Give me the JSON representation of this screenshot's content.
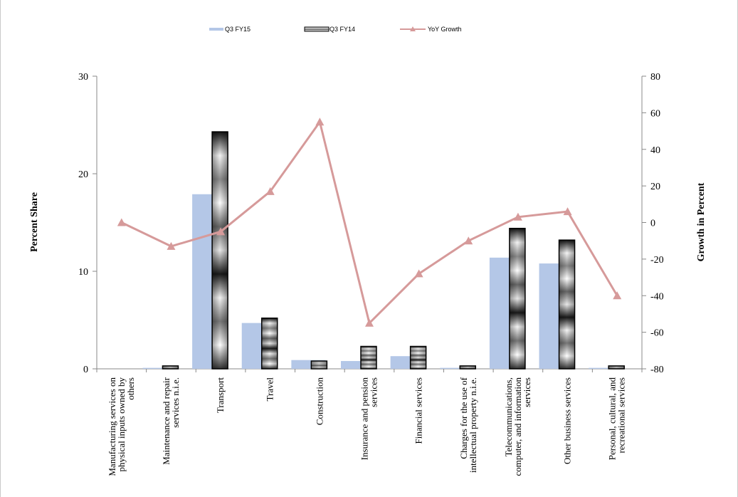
{
  "chart_data": {
    "type": "bar",
    "categories": [
      "Manufacturing  services on physical inputs owned by others",
      "Maintenance  and repair services  n.i.e.",
      "Transport",
      "Travel",
      "Construction",
      "Insurance and pension services",
      "Financial services",
      "Charges for the use of intellectual property n.i.e.",
      "Telecommunications, computer, and information services",
      "Other business services",
      "Personal, cultural, and recreational services"
    ],
    "category_lines": [
      [
        "Manufacturing  services on",
        "physical inputs owned by",
        "others"
      ],
      [
        "Maintenance  and repair",
        "services  n.i.e."
      ],
      [
        "Transport"
      ],
      [
        "Travel"
      ],
      [
        "Construction"
      ],
      [
        "Insurance and pension",
        "services"
      ],
      [
        "Financial services"
      ],
      [
        "Charges for the use of",
        "intellectual property n.i.e."
      ],
      [
        "Telecommunications,",
        "computer, and information",
        "services"
      ],
      [
        "Other business services"
      ],
      [
        "Personal, cultural, and",
        "recreational services"
      ]
    ],
    "series": [
      {
        "name": "Q3 FY15",
        "kind": "bar",
        "axis": "left",
        "color": "#b4c7e7",
        "values": [
          0,
          0.1,
          17.9,
          4.7,
          0.9,
          0.8,
          1.3,
          0.1,
          11.4,
          10.8,
          0.1
        ]
      },
      {
        "name": "Q3 FY14",
        "kind": "bar",
        "axis": "left",
        "color": "#808080",
        "values": [
          0,
          0.3,
          24.3,
          5.2,
          0.8,
          2.3,
          2.3,
          0.3,
          14.4,
          13.2,
          0.3
        ]
      },
      {
        "name": "YoY Growth",
        "kind": "line",
        "axis": "right",
        "color": "#d69a9a",
        "values": [
          0,
          -13,
          -5,
          17,
          55,
          -55,
          -28,
          -10,
          3,
          6,
          -40
        ]
      }
    ],
    "ylabel": "Percent Share",
    "y2label": "Growth in Percent",
    "ylim": [
      0,
      30
    ],
    "y2lim": [
      -80,
      80
    ],
    "yticks": [
      "0",
      "10",
      "20",
      "30"
    ],
    "y2ticks": [
      "-80",
      "-60",
      "-40",
      "-20",
      "0",
      "20",
      "40",
      "60",
      "80"
    ],
    "legend_position": "top",
    "grid": false
  }
}
